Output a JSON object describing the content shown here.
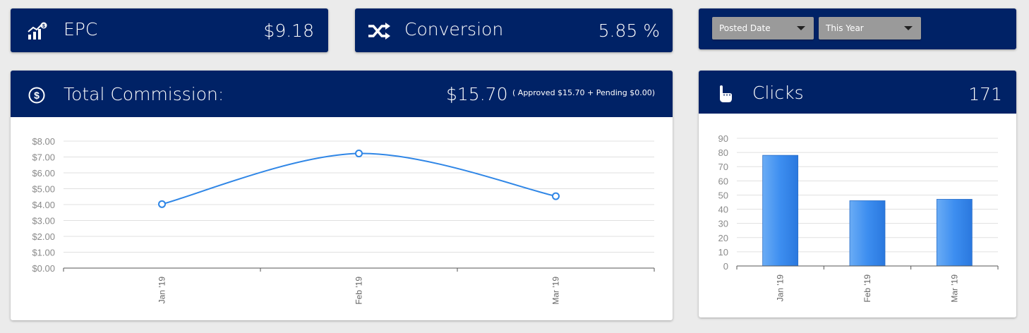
{
  "epc": {
    "label": "EPC",
    "value": "$9.18",
    "icon": "growth-chart-icon"
  },
  "conversion": {
    "label": "Conversion",
    "value": "5.85 %",
    "icon": "shuffle-icon"
  },
  "filters": {
    "date_type": "Posted Date",
    "range": "This Year"
  },
  "commission": {
    "label": "Total Commission:",
    "value": "$15.70",
    "detail": "( Approved $15.70 + Pending $0.00)",
    "icon": "dollar-circle-icon"
  },
  "clicks": {
    "label": "Clicks",
    "value": "171",
    "icon": "pointer-hand-icon"
  },
  "colors": {
    "header_bg": "#002266",
    "line": "#2f86e6",
    "bar": "#3d8ef0"
  },
  "chart_data": [
    {
      "type": "line",
      "categories": [
        "Jan '19",
        "Feb '19",
        "Mar '19"
      ],
      "values": [
        4.03,
        7.22,
        4.53
      ],
      "ylim": [
        0,
        8
      ],
      "yticks": [
        "$0.00",
        "$1.00",
        "$2.00",
        "$3.00",
        "$4.00",
        "$5.00",
        "$6.00",
        "$7.00",
        "$8.00"
      ],
      "grid": true
    },
    {
      "type": "bar",
      "categories": [
        "Jan '19",
        "Feb '19",
        "Mar '19"
      ],
      "values": [
        78,
        46,
        47
      ],
      "ylim": [
        0,
        90
      ],
      "yticks": [
        "0",
        "10",
        "20",
        "30",
        "40",
        "50",
        "60",
        "70",
        "80",
        "90"
      ],
      "grid": true
    }
  ]
}
